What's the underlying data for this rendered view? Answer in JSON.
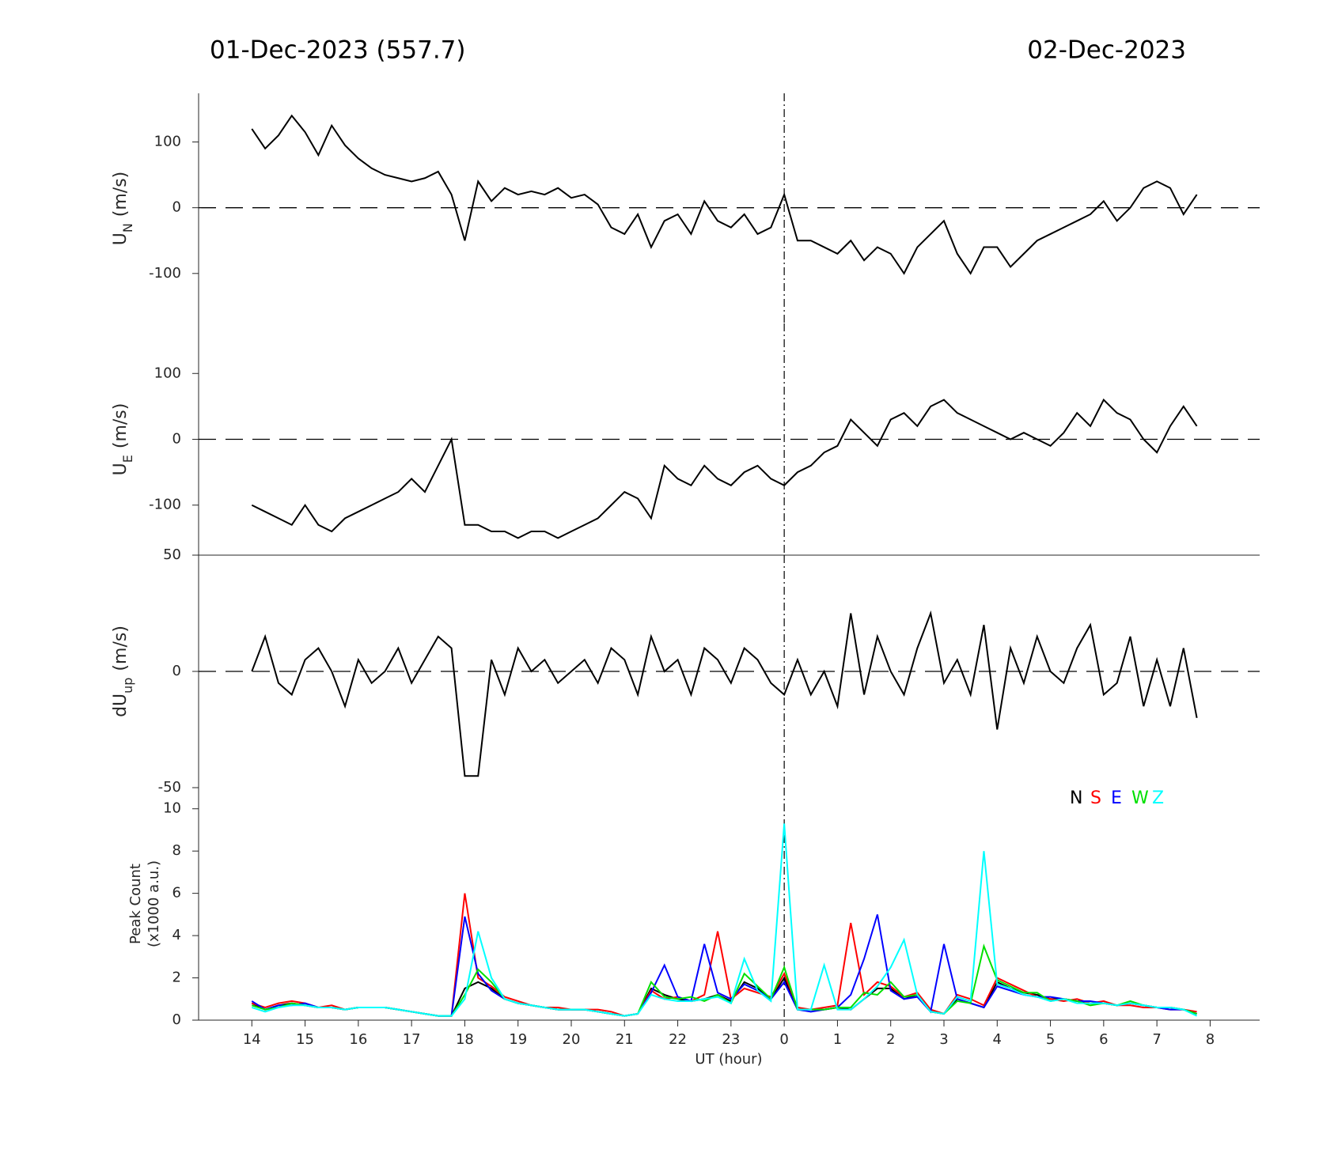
{
  "chart_data": {
    "type": "line",
    "title_left": "01-Dec-2023 (557.7)",
    "title_right": "02-Dec-2023",
    "xlabel": "UT (hour)",
    "xlim": [
      13,
      32.93
    ],
    "day_boundary": 24,
    "xticks": [
      14,
      15,
      16,
      17,
      18,
      19,
      20,
      21,
      22,
      23,
      {
        "value": 24,
        "label": "0"
      },
      {
        "value": 25,
        "label": "1"
      },
      {
        "value": 26,
        "label": "2"
      },
      {
        "value": 27,
        "label": "3"
      },
      {
        "value": 28,
        "label": "4"
      },
      {
        "value": 29,
        "label": "5"
      },
      {
        "value": 30,
        "label": "6"
      },
      {
        "value": 31,
        "label": "7"
      },
      {
        "value": 32,
        "label": "8"
      }
    ],
    "x": [
      14,
      14.25,
      14.5,
      14.75,
      15,
      15.25,
      15.5,
      15.75,
      16,
      16.25,
      16.5,
      16.75,
      17,
      17.25,
      17.5,
      17.75,
      18,
      18.25,
      18.5,
      18.75,
      19,
      19.25,
      19.5,
      19.75,
      20,
      20.25,
      20.5,
      20.75,
      21,
      21.25,
      21.5,
      21.75,
      22,
      22.25,
      22.5,
      22.75,
      23,
      23.25,
      23.5,
      23.75,
      24,
      24.25,
      24.5,
      24.75,
      25,
      25.25,
      25.5,
      25.75,
      26,
      26.25,
      26.5,
      26.75,
      27,
      27.25,
      27.5,
      27.75,
      28,
      28.25,
      28.5,
      28.75,
      29,
      29.25,
      29.5,
      29.75,
      30,
      30.25,
      30.5,
      30.75,
      31,
      31.25,
      31.5,
      31.75
    ],
    "panels": [
      {
        "ylabel": "U",
        "ylabel_sub": "N",
        "ylabel_unit": "(m/s)",
        "ylim": [
          -176,
          174
        ],
        "yticks": [
          -100,
          0,
          100
        ],
        "zero_line": true,
        "series": [
          {
            "color": "#000000",
            "values": [
              120,
              90,
              110,
              140,
              115,
              80,
              125,
              95,
              75,
              60,
              50,
              45,
              40,
              45,
              55,
              20,
              -50,
              40,
              10,
              30,
              20,
              25,
              20,
              30,
              15,
              20,
              5,
              -30,
              -40,
              -10,
              -60,
              -20,
              -10,
              -40,
              10,
              -20,
              -30,
              -10,
              -40,
              -30,
              20,
              -50,
              -50,
              -60,
              -70,
              -50,
              -80,
              -60,
              -70,
              -100,
              -60,
              -40,
              -20,
              -70,
              -100,
              -60,
              -60,
              -90,
              -70,
              -50,
              -40,
              -30,
              -20,
              -10,
              10,
              -20,
              0,
              30,
              40,
              30,
              -10,
              20
            ]
          }
        ]
      },
      {
        "ylabel": "U",
        "ylabel_sub": "E",
        "ylabel_unit": "(m/s)",
        "ylim": [
          -176,
          176
        ],
        "yticks": [
          -100,
          0,
          100
        ],
        "zero_line": true,
        "series": [
          {
            "color": "#000000",
            "values": [
              -100,
              -110,
              -120,
              -130,
              -100,
              -130,
              -140,
              -120,
              -110,
              -100,
              -90,
              -80,
              -60,
              -80,
              -40,
              0,
              -130,
              -130,
              -140,
              -140,
              -150,
              -140,
              -140,
              -150,
              -140,
              -130,
              -120,
              -100,
              -80,
              -90,
              -120,
              -40,
              -60,
              -70,
              -40,
              -60,
              -70,
              -50,
              -40,
              -60,
              -70,
              -50,
              -40,
              -20,
              -10,
              30,
              10,
              -10,
              30,
              40,
              20,
              50,
              60,
              40,
              30,
              20,
              10,
              0,
              10,
              0,
              -10,
              10,
              40,
              20,
              60,
              40,
              30,
              0,
              -20,
              20,
              50,
              20
            ]
          }
        ]
      },
      {
        "ylabel": "dU",
        "ylabel_sub": "up",
        "ylabel_unit": "(m/s)",
        "ylim": [
          -50,
          50
        ],
        "yticks": [
          -50,
          0,
          50
        ],
        "zero_line": true,
        "series": [
          {
            "color": "#000000",
            "values": [
              0,
              15,
              -5,
              -10,
              5,
              10,
              0,
              -15,
              5,
              -5,
              0,
              10,
              -5,
              5,
              15,
              10,
              -45,
              -45,
              5,
              -10,
              10,
              0,
              5,
              -5,
              0,
              5,
              -5,
              10,
              5,
              -10,
              15,
              0,
              5,
              -10,
              10,
              5,
              -5,
              10,
              5,
              -5,
              -10,
              5,
              -10,
              0,
              -15,
              25,
              -10,
              15,
              0,
              -10,
              10,
              25,
              -5,
              5,
              -10,
              20,
              -25,
              10,
              -5,
              15,
              0,
              -5,
              10,
              20,
              -10,
              -5,
              15,
              -15,
              5,
              -15,
              10,
              -20
            ]
          }
        ]
      },
      {
        "ylabel": "Peak Count",
        "ylabel2": "(x1000 a.u.)",
        "ylim": [
          0,
          11
        ],
        "yticks": [
          0,
          2,
          4,
          6,
          8,
          10
        ],
        "zero_line": false,
        "legend": "top-right",
        "series": [
          {
            "name": "N",
            "color": "#000000",
            "values": [
              0.8,
              0.5,
              0.7,
              0.8,
              0.7,
              0.6,
              0.6,
              0.5,
              0.6,
              0.6,
              0.6,
              0.5,
              0.4,
              0.3,
              0.2,
              0.2,
              1.5,
              1.8,
              1.5,
              1.0,
              0.8,
              0.7,
              0.6,
              0.5,
              0.5,
              0.5,
              0.4,
              0.3,
              0.2,
              0.3,
              1.5,
              1.2,
              1.0,
              0.9,
              1.0,
              1.2,
              0.9,
              1.8,
              1.5,
              1.0,
              2.0,
              0.5,
              0.5,
              0.5,
              0.6,
              0.5,
              1.0,
              1.5,
              1.5,
              1.0,
              1.2,
              0.4,
              0.3,
              1.0,
              0.8,
              0.6,
              1.8,
              1.5,
              1.3,
              1.2,
              1.0,
              1.0,
              0.9,
              0.8,
              0.8,
              0.7,
              0.8,
              0.7,
              0.6,
              0.6,
              0.5,
              0.3
            ]
          },
          {
            "name": "S",
            "color": "#ff0000",
            "values": [
              0.8,
              0.6,
              0.8,
              0.9,
              0.8,
              0.6,
              0.7,
              0.5,
              0.6,
              0.6,
              0.6,
              0.5,
              0.4,
              0.3,
              0.2,
              0.2,
              6.0,
              2.0,
              1.6,
              1.1,
              0.9,
              0.7,
              0.6,
              0.6,
              0.5,
              0.5,
              0.5,
              0.4,
              0.2,
              0.3,
              1.4,
              1.0,
              1.1,
              0.9,
              1.2,
              4.2,
              1.0,
              1.5,
              1.3,
              1.1,
              2.2,
              0.6,
              0.5,
              0.6,
              0.7,
              4.6,
              1.2,
              1.8,
              1.6,
              1.1,
              1.3,
              0.5,
              0.3,
              1.2,
              1.0,
              0.7,
              2.0,
              1.7,
              1.4,
              1.1,
              1.0,
              0.9,
              1.0,
              0.8,
              0.9,
              0.7,
              0.7,
              0.6,
              0.6,
              0.5,
              0.5,
              0.4
            ]
          },
          {
            "name": "E",
            "color": "#0000ff",
            "values": [
              0.9,
              0.5,
              0.7,
              0.7,
              0.8,
              0.6,
              0.6,
              0.5,
              0.6,
              0.6,
              0.6,
              0.5,
              0.4,
              0.3,
              0.2,
              0.2,
              4.9,
              2.2,
              1.4,
              1.0,
              0.8,
              0.7,
              0.6,
              0.5,
              0.5,
              0.5,
              0.4,
              0.3,
              0.2,
              0.3,
              1.3,
              2.6,
              1.1,
              0.9,
              3.6,
              1.3,
              1.0,
              1.7,
              1.4,
              1.0,
              1.8,
              0.5,
              0.4,
              0.5,
              0.6,
              1.2,
              2.9,
              5.0,
              1.4,
              1.0,
              1.1,
              0.4,
              3.6,
              1.0,
              0.8,
              0.6,
              1.6,
              1.4,
              1.2,
              1.1,
              1.1,
              1.0,
              0.9,
              0.9,
              0.8,
              0.7,
              0.8,
              0.7,
              0.6,
              0.5,
              0.5,
              0.3
            ]
          },
          {
            "name": "W",
            "color": "#00e000",
            "values": [
              0.7,
              0.5,
              0.6,
              0.8,
              0.7,
              0.6,
              0.6,
              0.5,
              0.6,
              0.6,
              0.6,
              0.5,
              0.4,
              0.3,
              0.2,
              0.2,
              1.2,
              2.4,
              1.8,
              1.0,
              0.8,
              0.7,
              0.6,
              0.5,
              0.5,
              0.5,
              0.4,
              0.3,
              0.2,
              0.3,
              1.8,
              1.1,
              1.0,
              1.1,
              0.9,
              1.2,
              0.8,
              2.2,
              1.6,
              1.0,
              2.5,
              0.5,
              0.5,
              0.5,
              0.6,
              0.6,
              1.3,
              1.2,
              1.8,
              1.1,
              1.2,
              0.4,
              0.3,
              0.9,
              0.8,
              3.5,
              1.9,
              1.6,
              1.3,
              1.3,
              0.9,
              1.0,
              0.9,
              0.7,
              0.8,
              0.7,
              0.9,
              0.7,
              0.6,
              0.6,
              0.5,
              0.3
            ]
          },
          {
            "name": "Z",
            "color": "#00ffff",
            "values": [
              0.6,
              0.4,
              0.6,
              0.7,
              0.7,
              0.6,
              0.6,
              0.5,
              0.6,
              0.6,
              0.6,
              0.5,
              0.4,
              0.3,
              0.2,
              0.2,
              1.0,
              4.2,
              2.0,
              1.0,
              0.8,
              0.7,
              0.6,
              0.5,
              0.5,
              0.5,
              0.4,
              0.3,
              0.2,
              0.3,
              1.2,
              1.0,
              0.9,
              0.9,
              1.0,
              1.1,
              0.8,
              2.9,
              1.4,
              0.9,
              9.3,
              0.5,
              0.5,
              2.6,
              0.5,
              0.5,
              1.0,
              1.6,
              2.5,
              3.8,
              1.2,
              0.4,
              0.3,
              1.1,
              0.9,
              8.0,
              1.7,
              1.5,
              1.2,
              1.1,
              0.9,
              1.0,
              0.8,
              0.8,
              0.8,
              0.7,
              0.8,
              0.7,
              0.6,
              0.6,
              0.5,
              0.2
            ]
          }
        ]
      }
    ]
  }
}
